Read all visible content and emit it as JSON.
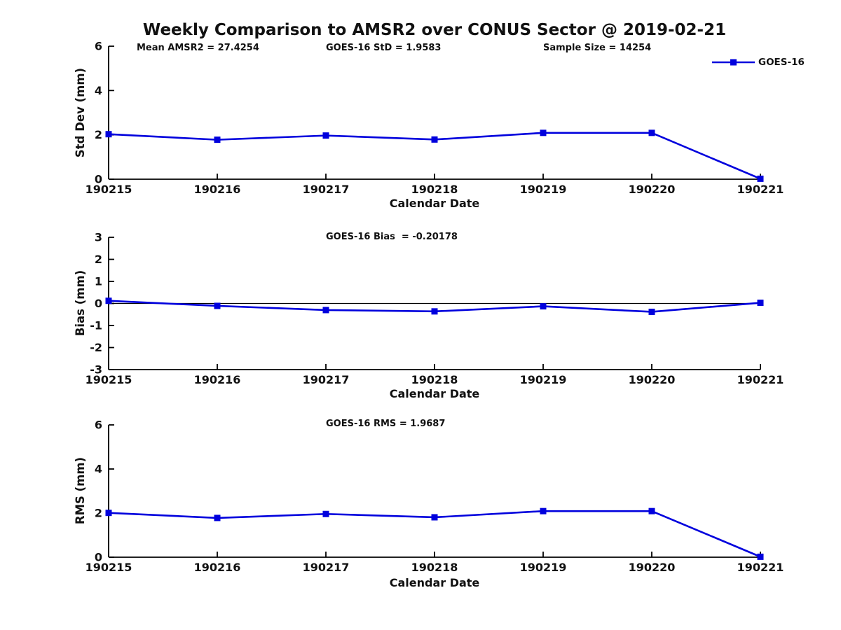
{
  "title": "Weekly Comparison to AMSR2 over CONUS Sector @ 2019-02-21",
  "header_stats": {
    "mean_amsr2": "Mean AMSR2 = 27.4254",
    "goes_std": "GOES-16 StD = 1.9583",
    "sample_size": "Sample Size = 14254"
  },
  "legend": {
    "label": "GOES-16"
  },
  "colors": {
    "line": "#0000dd",
    "axis": "#000000",
    "text": "#111111"
  },
  "chart_data": [
    {
      "type": "line",
      "categories": [
        "190215",
        "190216",
        "190217",
        "190218",
        "190219",
        "190220",
        "190221"
      ],
      "series": [
        {
          "name": "GOES-16",
          "values": [
            2.03,
            1.78,
            1.97,
            1.79,
            2.09,
            2.09,
            0.02
          ]
        }
      ],
      "title": "",
      "xlabel": "Calendar Date",
      "ylabel": "Std Dev (mm)",
      "ylim": [
        0,
        6
      ],
      "yticks": [
        0,
        2,
        4,
        6
      ],
      "grid": false,
      "legend_position": "upper-right",
      "annotation": ""
    },
    {
      "type": "line",
      "categories": [
        "190215",
        "190216",
        "190217",
        "190218",
        "190219",
        "190220",
        "190221"
      ],
      "series": [
        {
          "name": "GOES-16",
          "values": [
            0.12,
            -0.11,
            -0.3,
            -0.36,
            -0.13,
            -0.38,
            0.03
          ]
        }
      ],
      "title": "",
      "xlabel": "Calendar Date",
      "ylabel": "Bias (mm)",
      "ylim": [
        -3,
        3
      ],
      "yticks": [
        -3,
        -2,
        -1,
        0,
        1,
        2,
        3
      ],
      "grid": false,
      "zero_line": true,
      "annotation": "GOES-16 Bias  = -0.20178"
    },
    {
      "type": "line",
      "categories": [
        "190215",
        "190216",
        "190217",
        "190218",
        "190219",
        "190220",
        "190221"
      ],
      "series": [
        {
          "name": "GOES-16",
          "values": [
            2.01,
            1.78,
            1.96,
            1.81,
            2.09,
            2.09,
            0.02
          ]
        }
      ],
      "title": "",
      "xlabel": "Calendar Date",
      "ylabel": "RMS (mm)",
      "ylim": [
        0,
        6
      ],
      "yticks": [
        0,
        2,
        4,
        6
      ],
      "grid": false,
      "annotation": "GOES-16 RMS = 1.9687"
    }
  ]
}
